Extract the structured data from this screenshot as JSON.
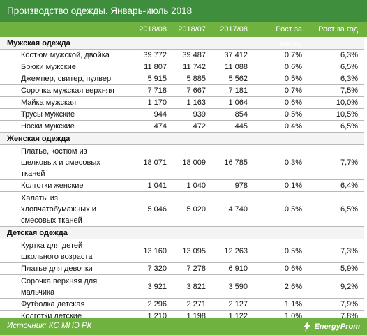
{
  "title": "Производство одежды. Январь-июль 2018",
  "columns": [
    "",
    "2018/08",
    "2018/07",
    "2017/08",
    "Рост за месяц",
    "Рост за год"
  ],
  "source": "Источник: КС МНЭ РК",
  "logo_text": "EnergyProm",
  "colors": {
    "title_bg": "#3e8e3e",
    "header_bg": "#6fb23f",
    "grid": "#b9b9b9"
  },
  "chart_data": {
    "type": "table",
    "title": "Производство одежды. Январь-июль 2018",
    "columns": [
      "2018/08",
      "2018/07",
      "2017/08",
      "Рост за месяц",
      "Рост за год"
    ],
    "sections": [
      {
        "name": "Мужская одежда",
        "rows": [
          {
            "lines": [
              "Костюм мужской, двойка"
            ],
            "v": [
              "39 772",
              "39 487",
              "37 412",
              "0,7%",
              "6,3%"
            ]
          },
          {
            "lines": [
              "Брюки мужские"
            ],
            "v": [
              "11 807",
              "11 742",
              "11 088",
              "0,6%",
              "6,5%"
            ]
          },
          {
            "lines": [
              "Джемпер, свитер, пулвер"
            ],
            "v": [
              "5 915",
              "5 885",
              "5 562",
              "0,5%",
              "6,3%"
            ]
          },
          {
            "lines": [
              "Сорочка мужская верхняя"
            ],
            "v": [
              "7 718",
              "7 667",
              "7 181",
              "0,7%",
              "7,5%"
            ]
          },
          {
            "lines": [
              "Майка мужская"
            ],
            "v": [
              "1 170",
              "1 163",
              "1 064",
              "0,6%",
              "10,0%"
            ]
          },
          {
            "lines": [
              "Трусы мужские"
            ],
            "v": [
              "944",
              "939",
              "854",
              "0,5%",
              "10,5%"
            ]
          },
          {
            "lines": [
              "Носки мужские"
            ],
            "v": [
              "474",
              "472",
              "445",
              "0,4%",
              "6,5%"
            ]
          }
        ]
      },
      {
        "name": "Женская одежда",
        "rows": [
          {
            "lines": [
              "Платье, костюм из",
              "шелковых и смесовых",
              "тканей"
            ],
            "v": [
              "18 071",
              "18 009",
              "16 785",
              "0,3%",
              "7,7%"
            ]
          },
          {
            "lines": [
              "Колготки женские"
            ],
            "v": [
              "1 041",
              "1 040",
              "978",
              "0,1%",
              "6,4%"
            ]
          },
          {
            "lines": [
              "Халаты из",
              "хлопчатобумажных  и",
              "смесовых тканей"
            ],
            "v": [
              "5 046",
              "5 020",
              "4 740",
              "0,5%",
              "6,5%"
            ]
          }
        ]
      },
      {
        "name": "Детская одежда",
        "rows": [
          {
            "lines": [
              "Куртка для детей",
              "школьного возраста"
            ],
            "v": [
              "13 160",
              "13 095",
              "12 263",
              "0,5%",
              "7,3%"
            ]
          },
          {
            "lines": [
              "Платье для девочки"
            ],
            "v": [
              "7 320",
              "7 278",
              "6 910",
              "0,6%",
              "5,9%"
            ]
          },
          {
            "lines": [
              "Сорочка верхняя для",
              "мальчика"
            ],
            "v": [
              "3 921",
              "3 821",
              "3 590",
              "2,6%",
              "9,2%"
            ]
          },
          {
            "lines": [
              "Футболка детская"
            ],
            "v": [
              "2 296",
              "2 271",
              "2 127",
              "1,1%",
              "7,9%"
            ]
          },
          {
            "lines": [
              "Колготки детские"
            ],
            "v": [
              "1 210",
              "1 198",
              "1 122",
              "1,0%",
              "7,8%"
            ]
          }
        ]
      }
    ]
  }
}
